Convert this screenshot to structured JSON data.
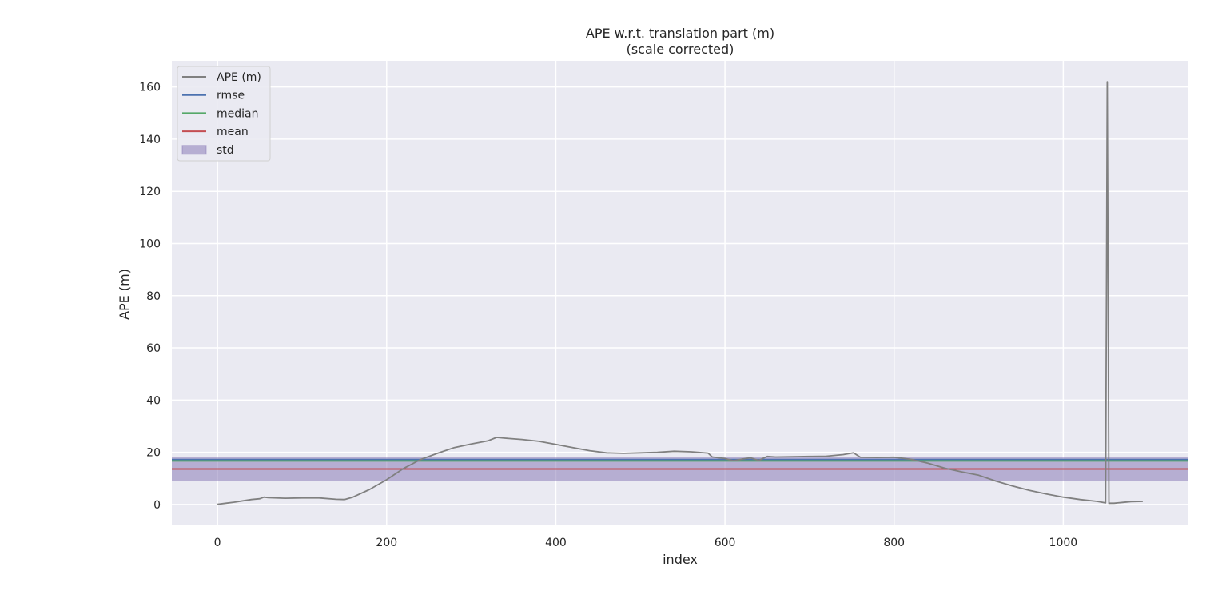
{
  "chart_data": {
    "type": "line",
    "title": "APE w.r.t. translation part (m)",
    "subtitle": "(scale corrected)",
    "xlabel": "index",
    "ylabel": "APE (m)",
    "xlim": [
      -54,
      1148
    ],
    "ylim": [
      -8,
      170
    ],
    "xticks": [
      0,
      200,
      400,
      600,
      800,
      1000
    ],
    "yticks": [
      0,
      20,
      40,
      60,
      80,
      100,
      120,
      140,
      160
    ],
    "grid": true,
    "legend_position": "upper left",
    "colors": {
      "background": "#eaeaf2",
      "grid": "#ffffff",
      "ape": "#808080",
      "rmse": "#4c72b0",
      "median": "#55a868",
      "mean": "#c44e52",
      "std": "#8172b2"
    },
    "legend": [
      {
        "label": "APE (m)",
        "kind": "line",
        "color": "#808080"
      },
      {
        "label": "rmse",
        "kind": "line",
        "color": "#4c72b0"
      },
      {
        "label": "median",
        "kind": "line",
        "color": "#55a868"
      },
      {
        "label": "mean",
        "kind": "line",
        "color": "#c44e52"
      },
      {
        "label": "std",
        "kind": "patch",
        "color": "#8172b2"
      }
    ],
    "stats": {
      "rmse": 17.2,
      "median": 16.7,
      "mean": 13.6,
      "std": 4.6
    },
    "series": [
      {
        "name": "APE (m)",
        "x": [
          0,
          10,
          20,
          30,
          40,
          50,
          55,
          60,
          80,
          100,
          120,
          140,
          150,
          160,
          180,
          200,
          220,
          240,
          260,
          280,
          300,
          320,
          330,
          340,
          360,
          380,
          400,
          420,
          440,
          460,
          480,
          500,
          520,
          540,
          560,
          580,
          585,
          600,
          610,
          620,
          630,
          640,
          650,
          660,
          680,
          700,
          720,
          740,
          752,
          760,
          780,
          800,
          820,
          840,
          860,
          880,
          900,
          920,
          940,
          960,
          980,
          1000,
          1020,
          1040,
          1050,
          1051,
          1052,
          1053,
          1054,
          1055,
          1060,
          1070,
          1080,
          1094
        ],
        "y": [
          0.1,
          0.5,
          0.9,
          1.4,
          1.9,
          2.2,
          2.8,
          2.6,
          2.4,
          2.5,
          2.5,
          2.0,
          1.9,
          2.8,
          5.8,
          9.5,
          13.8,
          17.2,
          19.6,
          21.8,
          23.2,
          24.4,
          25.7,
          25.4,
          24.9,
          24.2,
          23.0,
          21.8,
          20.6,
          19.8,
          19.6,
          19.8,
          20.0,
          20.4,
          20.2,
          19.7,
          18.2,
          17.6,
          16.8,
          17.4,
          17.9,
          16.9,
          18.4,
          18.2,
          18.3,
          18.4,
          18.5,
          19.1,
          19.8,
          18.1,
          18.0,
          18.1,
          17.3,
          15.8,
          13.9,
          12.5,
          11.2,
          9.0,
          7.1,
          5.4,
          4.0,
          2.8,
          1.9,
          1.2,
          0.6,
          80.0,
          162.0,
          80.0,
          0.4,
          0.5,
          0.5,
          0.8,
          1.1,
          1.2
        ]
      }
    ]
  }
}
